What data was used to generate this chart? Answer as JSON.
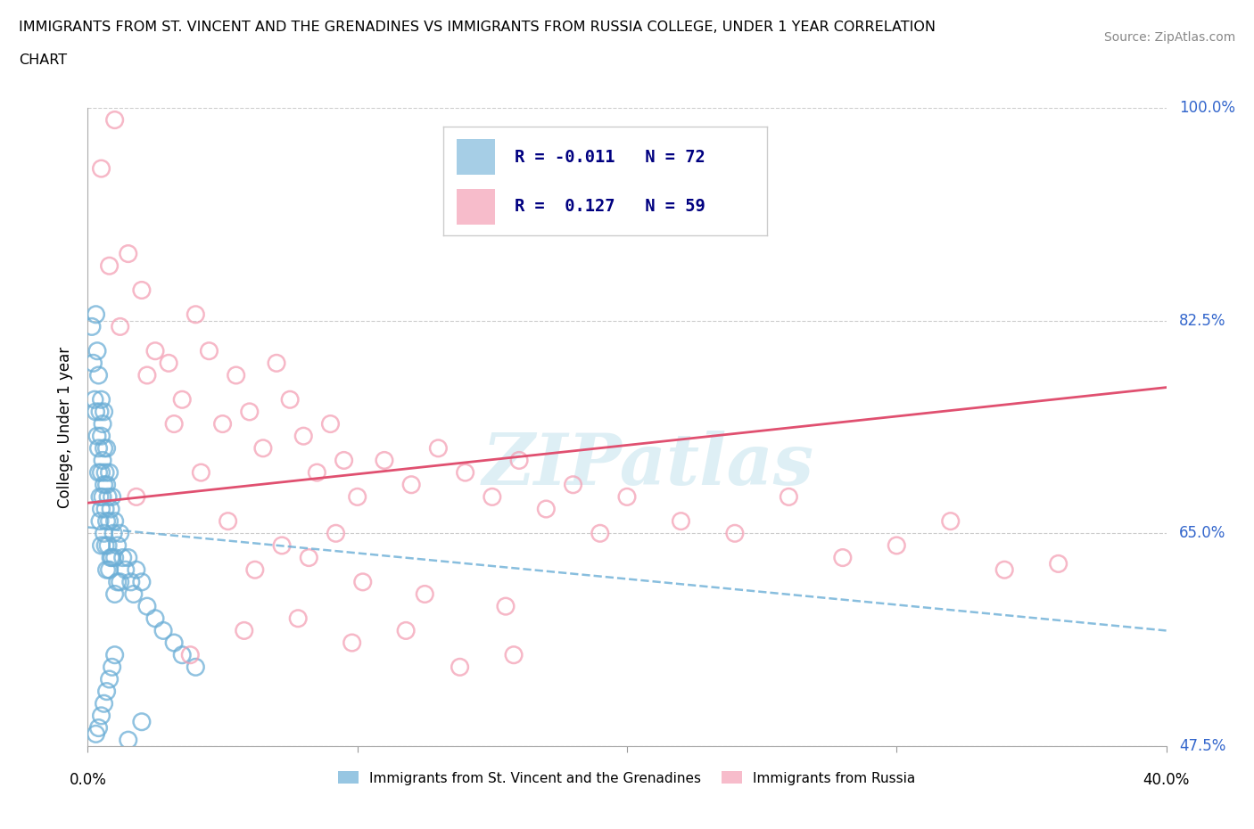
{
  "title_line1": "IMMIGRANTS FROM ST. VINCENT AND THE GRENADINES VS IMMIGRANTS FROM RUSSIA COLLEGE, UNDER 1 YEAR CORRELATION",
  "title_line2": "CHART",
  "source": "Source: ZipAtlas.com",
  "ylabel_label": "College, Under 1 year",
  "legend_labels": [
    "Immigrants from St. Vincent and the Grenadines",
    "Immigrants from Russia"
  ],
  "R_blue": -0.011,
  "N_blue": 72,
  "R_pink": 0.127,
  "N_pink": 59,
  "blue_color": "#6baed6",
  "pink_color": "#f4a0b5",
  "blue_line_color": "#6baed6",
  "pink_line_color": "#e05070",
  "xmin": 0.0,
  "xmax": 40.0,
  "ymin": 47.5,
  "ymax": 100.0,
  "yticks": [
    47.5,
    65.0,
    82.5,
    100.0
  ],
  "watermark_text": "ZIPatlas",
  "blue_trend_x0": 0.0,
  "blue_trend_y0": 65.5,
  "blue_trend_x1": 40.0,
  "blue_trend_y1": 57.0,
  "pink_trend_x0": 0.0,
  "pink_trend_y0": 67.5,
  "pink_trend_x1": 40.0,
  "pink_trend_y1": 77.0,
  "blue_x": [
    0.15,
    0.2,
    0.25,
    0.3,
    0.3,
    0.35,
    0.35,
    0.4,
    0.4,
    0.4,
    0.45,
    0.45,
    0.45,
    0.5,
    0.5,
    0.5,
    0.5,
    0.5,
    0.55,
    0.55,
    0.55,
    0.6,
    0.6,
    0.6,
    0.6,
    0.65,
    0.65,
    0.65,
    0.7,
    0.7,
    0.7,
    0.7,
    0.75,
    0.75,
    0.8,
    0.8,
    0.8,
    0.85,
    0.85,
    0.9,
    0.9,
    0.95,
    1.0,
    1.0,
    1.0,
    1.1,
    1.1,
    1.2,
    1.2,
    1.3,
    1.4,
    1.5,
    1.6,
    1.7,
    1.8,
    2.0,
    2.2,
    2.5,
    2.8,
    3.2,
    3.5,
    4.0,
    0.3,
    0.4,
    0.5,
    0.6,
    0.7,
    0.8,
    0.9,
    1.0,
    1.5,
    2.0
  ],
  "blue_y": [
    82.0,
    79.0,
    76.0,
    83.0,
    75.0,
    80.0,
    73.0,
    78.0,
    72.0,
    70.0,
    75.0,
    68.0,
    66.0,
    76.0,
    73.0,
    70.0,
    67.0,
    64.0,
    74.0,
    71.0,
    68.0,
    75.0,
    72.0,
    69.0,
    65.0,
    70.0,
    67.0,
    64.0,
    72.0,
    69.0,
    66.0,
    62.0,
    68.0,
    64.0,
    70.0,
    66.0,
    62.0,
    67.0,
    63.0,
    68.0,
    63.0,
    65.0,
    66.0,
    63.0,
    60.0,
    64.0,
    61.0,
    65.0,
    61.0,
    63.0,
    62.0,
    63.0,
    61.0,
    60.0,
    62.0,
    61.0,
    59.0,
    58.0,
    57.0,
    56.0,
    55.0,
    54.0,
    48.5,
    49.0,
    50.0,
    51.0,
    52.0,
    53.0,
    54.0,
    55.0,
    48.0,
    49.5
  ],
  "pink_x": [
    0.5,
    0.8,
    1.0,
    1.5,
    2.0,
    2.5,
    3.0,
    3.5,
    4.0,
    4.5,
    5.0,
    5.5,
    6.0,
    6.5,
    7.0,
    7.5,
    8.0,
    8.5,
    9.0,
    9.5,
    10.0,
    11.0,
    12.0,
    13.0,
    14.0,
    15.0,
    16.0,
    17.0,
    18.0,
    19.0,
    20.0,
    22.0,
    24.0,
    26.0,
    28.0,
    30.0,
    32.0,
    34.0,
    36.0,
    1.2,
    2.2,
    3.2,
    4.2,
    5.2,
    6.2,
    7.2,
    8.2,
    9.2,
    10.2,
    12.5,
    15.5,
    1.8,
    3.8,
    5.8,
    7.8,
    9.8,
    11.8,
    13.8,
    15.8
  ],
  "pink_y": [
    95.0,
    87.0,
    99.0,
    88.0,
    85.0,
    80.0,
    79.0,
    76.0,
    83.0,
    80.0,
    74.0,
    78.0,
    75.0,
    72.0,
    79.0,
    76.0,
    73.0,
    70.0,
    74.0,
    71.0,
    68.0,
    71.0,
    69.0,
    72.0,
    70.0,
    68.0,
    71.0,
    67.0,
    69.0,
    65.0,
    68.0,
    66.0,
    65.0,
    68.0,
    63.0,
    64.0,
    66.0,
    62.0,
    62.5,
    82.0,
    78.0,
    74.0,
    70.0,
    66.0,
    62.0,
    64.0,
    63.0,
    65.0,
    61.0,
    60.0,
    59.0,
    68.0,
    55.0,
    57.0,
    58.0,
    56.0,
    57.0,
    54.0,
    55.0
  ]
}
